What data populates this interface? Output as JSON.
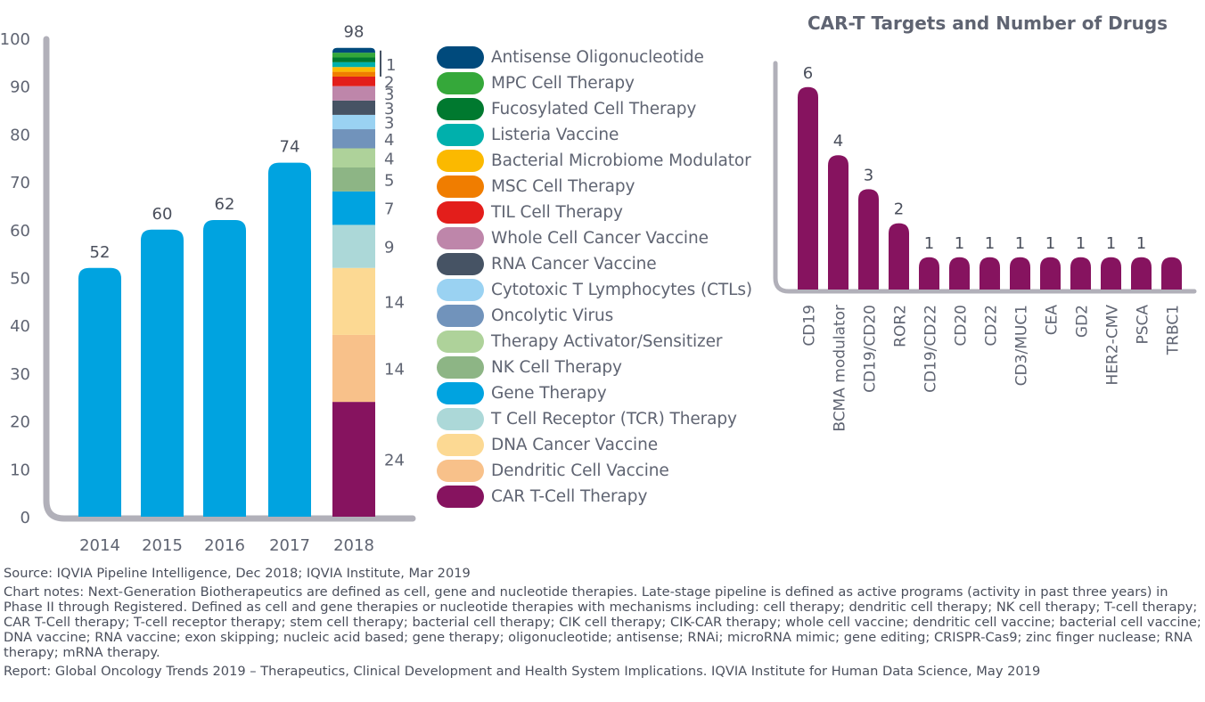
{
  "chart_data": [
    {
      "type": "bar",
      "stacked_last": true,
      "title": "",
      "xlabel": "",
      "ylabel": "",
      "ylim": [
        0,
        100
      ],
      "yticks": [
        0,
        10,
        20,
        30,
        40,
        50,
        60,
        70,
        80,
        90,
        100
      ],
      "categories": [
        "2014",
        "2015",
        "2016",
        "2017",
        "2018"
      ],
      "totals": [
        52,
        60,
        62,
        74,
        98
      ],
      "total_labels": [
        "52",
        "60",
        "62",
        "74",
        "98"
      ],
      "bar_color": "#00a3e0",
      "stack_2018": [
        {
          "name": "CAR T-Cell Therapy",
          "value": 24,
          "color": "#86135f",
          "label": "24"
        },
        {
          "name": "Dendritic Cell Vaccine",
          "value": 14,
          "color": "#f8c18a",
          "label": "14"
        },
        {
          "name": "DNA Cancer Vaccine",
          "value": 14,
          "color": "#fcd993",
          "label": "14"
        },
        {
          "name": "T Cell Receptor (TCR) Therapy",
          "value": 9,
          "color": "#acd8d8",
          "label": "9"
        },
        {
          "name": "Gene Therapy",
          "value": 7,
          "color": "#00a3e0",
          "label": "7"
        },
        {
          "name": "NK Cell Therapy",
          "value": 5,
          "color": "#8db585",
          "label": "5"
        },
        {
          "name": "Therapy Activator/Sensitizer",
          "value": 4,
          "color": "#aed29a",
          "label": "4"
        },
        {
          "name": "Oncolytic Virus",
          "value": 4,
          "color": "#7193bb",
          "label": "4"
        },
        {
          "name": "Cytotoxic T Lymphocytes (CTLs)",
          "value": 3,
          "color": "#9ad2f2",
          "label": "3"
        },
        {
          "name": "RNA Cancer Vaccine",
          "value": 3,
          "color": "#465364",
          "label": "3"
        },
        {
          "name": "Whole Cell Cancer Vaccine",
          "value": 3,
          "color": "#be86aa",
          "label": "3"
        },
        {
          "name": "TIL Cell Therapy",
          "value": 2,
          "color": "#e31e1b",
          "label": "2"
        },
        {
          "name": "MSC Cell Therapy",
          "value": 1,
          "color": "#f07d00",
          "label": ""
        },
        {
          "name": "Bacterial Microbiome Modulator",
          "value": 1,
          "color": "#fbb900",
          "label": ""
        },
        {
          "name": "Listeria Vaccine",
          "value": 1,
          "color": "#00b0ac",
          "label": ""
        },
        {
          "name": "Fucosylated Cell Therapy",
          "value": 1,
          "color": "#00792f",
          "label": ""
        },
        {
          "name": "MPC Cell Therapy",
          "value": 1,
          "color": "#35a83a",
          "label": ""
        },
        {
          "name": "Antisense Oligonucleotide",
          "value": 1,
          "color": "#004a7c",
          "label": ""
        }
      ],
      "bracket_label": "1",
      "legend": [
        {
          "name": "Antisense Oligonucleotide",
          "color": "#004a7c"
        },
        {
          "name": "MPC Cell Therapy",
          "color": "#35a83a"
        },
        {
          "name": "Fucosylated Cell Therapy",
          "color": "#00792f"
        },
        {
          "name": "Listeria Vaccine",
          "color": "#00b0ac"
        },
        {
          "name": "Bacterial Microbiome Modulator",
          "color": "#fbb900"
        },
        {
          "name": "MSC Cell Therapy",
          "color": "#f07d00"
        },
        {
          "name": "TIL Cell Therapy",
          "color": "#e31e1b"
        },
        {
          "name": "Whole Cell Cancer Vaccine",
          "color": "#be86aa"
        },
        {
          "name": "RNA Cancer Vaccine",
          "color": "#465364"
        },
        {
          "name": "Cytotoxic T Lymphocytes (CTLs)",
          "color": "#9ad2f2"
        },
        {
          "name": "Oncolytic Virus",
          "color": "#7193bb"
        },
        {
          "name": "Therapy Activator/Sensitizer",
          "color": "#aed29a"
        },
        {
          "name": "NK Cell Therapy",
          "color": "#8db585"
        },
        {
          "name": "Gene Therapy",
          "color": "#00a3e0"
        },
        {
          "name": "T Cell Receptor (TCR) Therapy",
          "color": "#acd8d8"
        },
        {
          "name": "DNA Cancer Vaccine",
          "color": "#fcd993"
        },
        {
          "name": "Dendritic Cell Vaccine",
          "color": "#f8c18a"
        },
        {
          "name": "CAR T-Cell Therapy",
          "color": "#86135f"
        }
      ],
      "legend_position": "right",
      "grid": false
    },
    {
      "type": "bar",
      "title": "CAR-T Targets and Number of Drugs",
      "xlabel": "",
      "ylabel": "",
      "ylim": [
        0,
        6.5
      ],
      "categories": [
        "CD19",
        "BCMA modulator",
        "CD19/CD20",
        "ROR2",
        "CD19/CD22",
        "CD20",
        "CD22",
        "CD3/MUC1",
        "CEA",
        "GD2",
        "HER2-CMV",
        "PSCA",
        "TRBC1"
      ],
      "values": [
        6,
        4,
        3,
        2,
        1,
        1,
        1,
        1,
        1,
        1,
        1,
        1,
        1
      ],
      "value_labels": [
        "6",
        "4",
        "3",
        "2",
        "1",
        "1",
        "1",
        "1",
        "1",
        "1",
        "1",
        "1",
        ""
      ],
      "bar_color": "#86135f",
      "grid": false
    }
  ],
  "notes": {
    "source": "Source: IQVIA Pipeline Intelligence, Dec 2018; IQVIA Institute, Mar 2019",
    "chart_notes": "Chart notes: Next-Generation Biotherapeutics are defined as cell, gene and nucleotide therapies. Late-stage pipeline is defined as active programs (activity in past three years) in Phase II through Registered. Defined as cell and gene therapies or nucleotide therapies with mechanisms including: cell therapy; dendritic cell therapy; NK cell therapy; T-cell therapy; CAR T-Cell therapy; T-cell receptor therapy; stem cell therapy; bacterial cell therapy; CIK cell therapy; CIK-CAR therapy; whole cell vaccine; dendritic cell vaccine; bacterial cell vaccine; DNA vaccine; RNA vaccine; exon skipping; nucleic acid based; gene therapy; oligonucleotide; antisense; RNAi; microRNA mimic; gene editing; CRISPR-Cas9; zinc finger nuclease; RNA therapy; mRNA therapy.",
    "report": "Report: Global Oncology Trends 2019 – Therapeutics, Clinical Development and Health System Implications. IQVIA Institute for Human Data Science, May 2019"
  }
}
